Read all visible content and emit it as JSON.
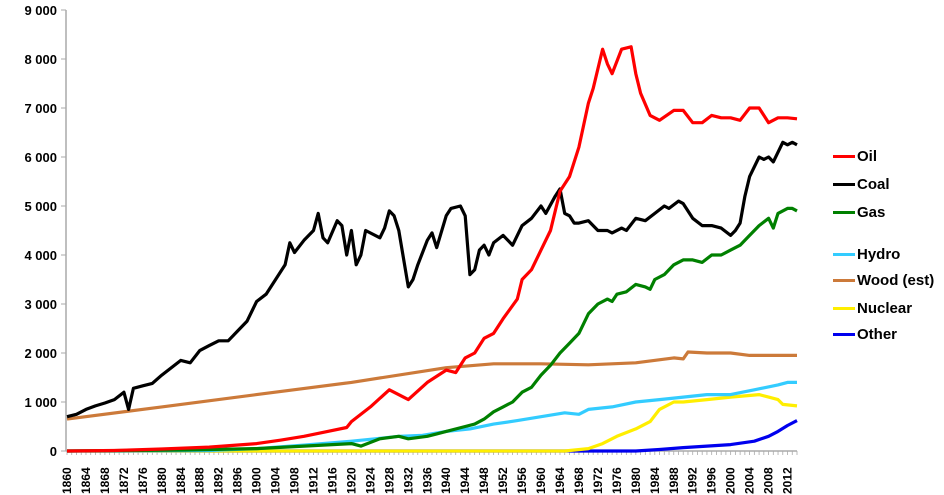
{
  "chart_data": {
    "type": "line",
    "title": "",
    "xlabel": "",
    "ylabel": "",
    "xlim": [
      1860,
      2014
    ],
    "ylim": [
      0,
      9000
    ],
    "yticks": [
      "0",
      "1 000",
      "2 000",
      "3 000",
      "4 000",
      "5 000",
      "6 000",
      "7 000",
      "8 000",
      "9 000"
    ],
    "yticks_values": [
      0,
      1000,
      2000,
      3000,
      4000,
      5000,
      6000,
      7000,
      8000,
      9000
    ],
    "xticks": [
      "1860",
      "1864",
      "1868",
      "1872",
      "1876",
      "1880",
      "1884",
      "1888",
      "1892",
      "1896",
      "1900",
      "1904",
      "1908",
      "1912",
      "1916",
      "1920",
      "1924",
      "1928",
      "1932",
      "1936",
      "1940",
      "1944",
      "1948",
      "1952",
      "1956",
      "1960",
      "1964",
      "1968",
      "1972",
      "1976",
      "1980",
      "1984",
      "1988",
      "1992",
      "1996",
      "2000",
      "2004",
      "2008",
      "2012"
    ],
    "grid": false,
    "legend_position": "right",
    "series": [
      {
        "name": "Oil",
        "color": "#ff0000",
        "points": [
          [
            1860,
            0
          ],
          [
            1870,
            10
          ],
          [
            1880,
            40
          ],
          [
            1890,
            80
          ],
          [
            1900,
            150
          ],
          [
            1905,
            220
          ],
          [
            1910,
            300
          ],
          [
            1915,
            400
          ],
          [
            1919,
            480
          ],
          [
            1920,
            600
          ],
          [
            1924,
            900
          ],
          [
            1928,
            1250
          ],
          [
            1932,
            1050
          ],
          [
            1936,
            1400
          ],
          [
            1940,
            1650
          ],
          [
            1942,
            1600
          ],
          [
            1944,
            1900
          ],
          [
            1946,
            2000
          ],
          [
            1948,
            2300
          ],
          [
            1950,
            2400
          ],
          [
            1952,
            2700
          ],
          [
            1955,
            3100
          ],
          [
            1956,
            3500
          ],
          [
            1958,
            3700
          ],
          [
            1960,
            4100
          ],
          [
            1962,
            4500
          ],
          [
            1964,
            5300
          ],
          [
            1966,
            5600
          ],
          [
            1968,
            6200
          ],
          [
            1970,
            7100
          ],
          [
            1971,
            7400
          ],
          [
            1973,
            8200
          ],
          [
            1974,
            7900
          ],
          [
            1975,
            7700
          ],
          [
            1977,
            8200
          ],
          [
            1979,
            8250
          ],
          [
            1980,
            7700
          ],
          [
            1981,
            7300
          ],
          [
            1983,
            6850
          ],
          [
            1985,
            6750
          ],
          [
            1988,
            6950
          ],
          [
            1990,
            6950
          ],
          [
            1992,
            6700
          ],
          [
            1994,
            6700
          ],
          [
            1996,
            6850
          ],
          [
            1998,
            6800
          ],
          [
            2000,
            6800
          ],
          [
            2002,
            6750
          ],
          [
            2004,
            7000
          ],
          [
            2006,
            7000
          ],
          [
            2008,
            6700
          ],
          [
            2010,
            6800
          ],
          [
            2012,
            6800
          ],
          [
            2014,
            6780
          ]
        ]
      },
      {
        "name": "Coal",
        "color": "#000000",
        "points": [
          [
            1860,
            700
          ],
          [
            1862,
            750
          ],
          [
            1864,
            850
          ],
          [
            1866,
            920
          ],
          [
            1868,
            980
          ],
          [
            1870,
            1050
          ],
          [
            1872,
            1200
          ],
          [
            1873,
            850
          ],
          [
            1874,
            1280
          ],
          [
            1876,
            1330
          ],
          [
            1878,
            1380
          ],
          [
            1880,
            1550
          ],
          [
            1882,
            1700
          ],
          [
            1884,
            1850
          ],
          [
            1886,
            1800
          ],
          [
            1888,
            2050
          ],
          [
            1890,
            2150
          ],
          [
            1892,
            2250
          ],
          [
            1894,
            2250
          ],
          [
            1896,
            2450
          ],
          [
            1898,
            2650
          ],
          [
            1900,
            3050
          ],
          [
            1902,
            3200
          ],
          [
            1904,
            3500
          ],
          [
            1906,
            3800
          ],
          [
            1907,
            4250
          ],
          [
            1908,
            4050
          ],
          [
            1910,
            4300
          ],
          [
            1912,
            4500
          ],
          [
            1913,
            4850
          ],
          [
            1914,
            4350
          ],
          [
            1915,
            4250
          ],
          [
            1917,
            4700
          ],
          [
            1918,
            4600
          ],
          [
            1919,
            4000
          ],
          [
            1920,
            4500
          ],
          [
            1921,
            3800
          ],
          [
            1922,
            4000
          ],
          [
            1923,
            4500
          ],
          [
            1926,
            4350
          ],
          [
            1927,
            4550
          ],
          [
            1928,
            4900
          ],
          [
            1929,
            4800
          ],
          [
            1930,
            4500
          ],
          [
            1932,
            3350
          ],
          [
            1933,
            3500
          ],
          [
            1934,
            3800
          ],
          [
            1936,
            4300
          ],
          [
            1937,
            4450
          ],
          [
            1938,
            4150
          ],
          [
            1940,
            4800
          ],
          [
            1941,
            4950
          ],
          [
            1943,
            5000
          ],
          [
            1944,
            4800
          ],
          [
            1945,
            3600
          ],
          [
            1946,
            3700
          ],
          [
            1947,
            4100
          ],
          [
            1948,
            4200
          ],
          [
            1949,
            4000
          ],
          [
            1950,
            4250
          ],
          [
            1952,
            4400
          ],
          [
            1954,
            4200
          ],
          [
            1956,
            4600
          ],
          [
            1958,
            4750
          ],
          [
            1960,
            5000
          ],
          [
            1961,
            4850
          ],
          [
            1963,
            5200
          ],
          [
            1964,
            5350
          ],
          [
            1965,
            4850
          ],
          [
            1966,
            4800
          ],
          [
            1967,
            4650
          ],
          [
            1968,
            4650
          ],
          [
            1970,
            4700
          ],
          [
            1972,
            4500
          ],
          [
            1974,
            4500
          ],
          [
            1975,
            4450
          ],
          [
            1977,
            4550
          ],
          [
            1978,
            4500
          ],
          [
            1980,
            4750
          ],
          [
            1982,
            4700
          ],
          [
            1984,
            4850
          ],
          [
            1986,
            5000
          ],
          [
            1987,
            4950
          ],
          [
            1989,
            5100
          ],
          [
            1990,
            5050
          ],
          [
            1992,
            4750
          ],
          [
            1994,
            4600
          ],
          [
            1996,
            4600
          ],
          [
            1998,
            4550
          ],
          [
            2000,
            4400
          ],
          [
            2001,
            4500
          ],
          [
            2002,
            4650
          ],
          [
            2003,
            5200
          ],
          [
            2004,
            5600
          ],
          [
            2006,
            6000
          ],
          [
            2007,
            5950
          ],
          [
            2008,
            6000
          ],
          [
            2009,
            5900
          ],
          [
            2011,
            6300
          ],
          [
            2012,
            6250
          ],
          [
            2013,
            6300
          ],
          [
            2014,
            6250
          ]
        ]
      },
      {
        "name": "Gas",
        "color": "#008000",
        "points": [
          [
            1860,
            0
          ],
          [
            1885,
            20
          ],
          [
            1900,
            50
          ],
          [
            1910,
            100
          ],
          [
            1920,
            150
          ],
          [
            1922,
            100
          ],
          [
            1926,
            250
          ],
          [
            1930,
            300
          ],
          [
            1932,
            250
          ],
          [
            1936,
            300
          ],
          [
            1938,
            350
          ],
          [
            1940,
            400
          ],
          [
            1944,
            500
          ],
          [
            1946,
            550
          ],
          [
            1948,
            650
          ],
          [
            1950,
            800
          ],
          [
            1952,
            900
          ],
          [
            1954,
            1000
          ],
          [
            1956,
            1200
          ],
          [
            1958,
            1300
          ],
          [
            1960,
            1550
          ],
          [
            1962,
            1750
          ],
          [
            1964,
            2000
          ],
          [
            1966,
            2200
          ],
          [
            1968,
            2400
          ],
          [
            1970,
            2800
          ],
          [
            1972,
            3000
          ],
          [
            1974,
            3100
          ],
          [
            1975,
            3050
          ],
          [
            1976,
            3200
          ],
          [
            1978,
            3250
          ],
          [
            1980,
            3400
          ],
          [
            1982,
            3350
          ],
          [
            1983,
            3300
          ],
          [
            1984,
            3500
          ],
          [
            1986,
            3600
          ],
          [
            1988,
            3800
          ],
          [
            1990,
            3900
          ],
          [
            1992,
            3900
          ],
          [
            1994,
            3850
          ],
          [
            1996,
            4000
          ],
          [
            1998,
            4000
          ],
          [
            2000,
            4100
          ],
          [
            2002,
            4200
          ],
          [
            2004,
            4400
          ],
          [
            2006,
            4600
          ],
          [
            2008,
            4750
          ],
          [
            2009,
            4550
          ],
          [
            2010,
            4850
          ],
          [
            2012,
            4950
          ],
          [
            2013,
            4950
          ],
          [
            2014,
            4900
          ]
        ]
      },
      {
        "name": "Hydro",
        "color": "#33ccff",
        "points": [
          [
            1860,
            0
          ],
          [
            1890,
            10
          ],
          [
            1900,
            50
          ],
          [
            1910,
            120
          ],
          [
            1920,
            200
          ],
          [
            1925,
            250
          ],
          [
            1930,
            300
          ],
          [
            1935,
            320
          ],
          [
            1940,
            400
          ],
          [
            1945,
            450
          ],
          [
            1950,
            550
          ],
          [
            1955,
            620
          ],
          [
            1960,
            700
          ],
          [
            1965,
            780
          ],
          [
            1968,
            750
          ],
          [
            1970,
            850
          ],
          [
            1975,
            900
          ],
          [
            1980,
            1000
          ],
          [
            1985,
            1050
          ],
          [
            1990,
            1100
          ],
          [
            1995,
            1150
          ],
          [
            2000,
            1150
          ],
          [
            2005,
            1250
          ],
          [
            2010,
            1350
          ],
          [
            2012,
            1400
          ],
          [
            2014,
            1400
          ]
        ]
      },
      {
        "name": "Wood (est)",
        "color": "#cc7a3a",
        "points": [
          [
            1860,
            650
          ],
          [
            1880,
            900
          ],
          [
            1900,
            1150
          ],
          [
            1920,
            1400
          ],
          [
            1940,
            1700
          ],
          [
            1950,
            1780
          ],
          [
            1960,
            1780
          ],
          [
            1970,
            1760
          ],
          [
            1980,
            1800
          ],
          [
            1988,
            1900
          ],
          [
            1990,
            1880
          ],
          [
            1991,
            2020
          ],
          [
            1995,
            2000
          ],
          [
            2000,
            2000
          ],
          [
            2004,
            1950
          ],
          [
            2014,
            1950
          ]
        ]
      },
      {
        "name": "Nuclear",
        "color": "#ffee00",
        "points": [
          [
            1860,
            0
          ],
          [
            1965,
            0
          ],
          [
            1970,
            50
          ],
          [
            1973,
            150
          ],
          [
            1976,
            300
          ],
          [
            1980,
            450
          ],
          [
            1983,
            600
          ],
          [
            1985,
            850
          ],
          [
            1988,
            1000
          ],
          [
            1990,
            1000
          ],
          [
            1995,
            1050
          ],
          [
            2000,
            1100
          ],
          [
            2006,
            1150
          ],
          [
            2008,
            1100
          ],
          [
            2010,
            1050
          ],
          [
            2011,
            950
          ],
          [
            2014,
            920
          ]
        ]
      },
      {
        "name": "Other",
        "color": "#0000ee",
        "points": [
          [
            1860,
            0
          ],
          [
            1980,
            0
          ],
          [
            1985,
            30
          ],
          [
            1990,
            70
          ],
          [
            1995,
            100
          ],
          [
            2000,
            130
          ],
          [
            2005,
            200
          ],
          [
            2008,
            300
          ],
          [
            2010,
            400
          ],
          [
            2012,
            520
          ],
          [
            2014,
            620
          ]
        ]
      }
    ]
  }
}
